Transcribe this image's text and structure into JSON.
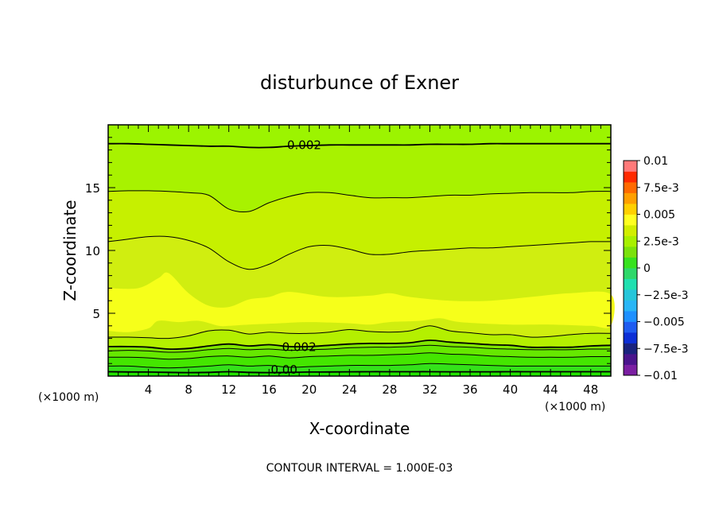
{
  "chart_data": {
    "type": "heatmap",
    "title": "disturbunce of Exner",
    "xlabel": "X-coordinate",
    "ylabel": "Z-coordinate",
    "x_unit_left": "(×1000 m)",
    "x_unit_right": "(×1000 m)",
    "footer": "CONTOUR INTERVAL = 1.000E-03",
    "xlim": [
      0,
      50
    ],
    "ylim": [
      0,
      20
    ],
    "x_ticks": [
      4,
      8,
      12,
      16,
      20,
      24,
      28,
      32,
      36,
      40,
      44,
      48
    ],
    "y_ticks": [
      5,
      10,
      15
    ],
    "colorbar": {
      "min": -0.01,
      "max": 0.01,
      "step": 0.001,
      "labels": [
        "0.01",
        "7.5e-3",
        "0.005",
        "2.5e-3",
        "0",
        "-2.5e-3",
        "-0.005",
        "-7.5e-3",
        "-0.01"
      ],
      "colors": [
        "#7b1fa2",
        "#4a148c",
        "#1a237e",
        "#0d2fd6",
        "#1f5cf0",
        "#1e90ff",
        "#29b6f6",
        "#26c6da",
        "#20e0b0",
        "#2ed86a",
        "#37e21e",
        "#7be20c",
        "#a8f000",
        "#d2ee00",
        "#ffff20",
        "#ffd000",
        "#ff9f00",
        "#ff6a00",
        "#ff2a00",
        "#ff7a7a"
      ]
    },
    "contour_labels": [
      {
        "text": "0.002",
        "x": 19.5,
        "z": 18.4
      },
      {
        "text": "0.002",
        "x": 19.0,
        "z": 2.3
      },
      {
        "text": "0.00",
        "x": 17.5,
        "z": 0.5
      }
    ],
    "fields": [
      {
        "level": 0.0,
        "z": [
          0.35,
          0.33,
          0.32,
          0.3,
          0.28,
          0.3,
          0.35,
          0.3,
          0.28,
          0.3,
          0.32,
          0.33,
          0.34,
          0.35,
          0.35,
          0.35,
          0.35,
          0.34,
          0.34,
          0.34,
          0.35,
          0.35,
          0.35,
          0.35,
          0.35,
          0.35
        ]
      },
      {
        "level": 0.0005,
        "z": [
          0.8,
          0.8,
          0.7,
          0.65,
          0.7,
          0.8,
          0.9,
          0.8,
          0.85,
          0.7,
          0.75,
          0.8,
          0.85,
          0.85,
          0.85,
          0.9,
          1.0,
          0.95,
          0.9,
          0.85,
          0.8,
          0.8,
          0.8,
          0.8,
          0.8,
          0.8
        ]
      },
      {
        "level": 0.001,
        "z": [
          1.5,
          1.5,
          1.45,
          1.35,
          1.4,
          1.55,
          1.6,
          1.5,
          1.6,
          1.45,
          1.55,
          1.6,
          1.65,
          1.65,
          1.7,
          1.75,
          1.85,
          1.75,
          1.7,
          1.6,
          1.55,
          1.5,
          1.5,
          1.5,
          1.55,
          1.55
        ]
      },
      {
        "level": 0.0015,
        "z": [
          2.0,
          2.05,
          2.0,
          1.9,
          1.95,
          2.1,
          2.2,
          2.1,
          2.15,
          2.05,
          2.1,
          2.15,
          2.25,
          2.3,
          2.3,
          2.35,
          2.45,
          2.35,
          2.3,
          2.2,
          2.15,
          2.1,
          2.1,
          2.1,
          2.15,
          2.15
        ]
      },
      {
        "level": 0.002,
        "z": [
          2.35,
          2.35,
          2.3,
          2.15,
          2.2,
          2.4,
          2.55,
          2.4,
          2.5,
          2.35,
          2.35,
          2.45,
          2.55,
          2.6,
          2.6,
          2.65,
          2.85,
          2.7,
          2.6,
          2.5,
          2.45,
          2.3,
          2.3,
          2.3,
          2.4,
          2.45
        ]
      },
      {
        "level": 0.0025,
        "z": [
          3.1,
          3.1,
          3.05,
          3.0,
          3.2,
          3.6,
          3.65,
          3.35,
          3.5,
          3.4,
          3.4,
          3.5,
          3.7,
          3.55,
          3.5,
          3.6,
          4.0,
          3.6,
          3.45,
          3.3,
          3.3,
          3.1,
          3.15,
          3.3,
          3.4,
          3.4
        ]
      },
      {
        "level": 0.003,
        "z": [
          10.7,
          10.9,
          11.1,
          11.1,
          10.8,
          10.2,
          9.1,
          8.5,
          8.9,
          9.7,
          10.3,
          10.4,
          10.1,
          9.7,
          9.7,
          9.9,
          10.0,
          10.1,
          10.2,
          10.2,
          10.3,
          10.4,
          10.5,
          10.6,
          10.7,
          10.7
        ]
      },
      {
        "level": 0.0035,
        "z": [
          14.7,
          14.75,
          14.75,
          14.7,
          14.6,
          14.4,
          13.3,
          13.1,
          13.8,
          14.3,
          14.6,
          14.6,
          14.4,
          14.2,
          14.2,
          14.2,
          14.3,
          14.4,
          14.4,
          14.5,
          14.55,
          14.6,
          14.6,
          14.6,
          14.7,
          14.7
        ]
      },
      {
        "level": 0.004,
        "z": [
          18.5,
          18.5,
          18.45,
          18.4,
          18.35,
          18.3,
          18.3,
          18.2,
          18.2,
          18.3,
          18.35,
          18.4,
          18.4,
          18.4,
          18.4,
          18.4,
          18.45,
          18.45,
          18.45,
          18.5,
          18.5,
          18.5,
          18.5,
          18.5,
          18.5,
          18.5
        ]
      }
    ],
    "fill_colors": [
      "#22e000",
      "#34e21a",
      "#44e600",
      "#66e800",
      "#7fe600",
      "#b4f000",
      "#d0ee10",
      "#c6f000",
      "#a8f200",
      "#9cf400"
    ],
    "yellow_zone_color": "#f6ff1a",
    "grid": false,
    "legend": "colorbar-right"
  }
}
